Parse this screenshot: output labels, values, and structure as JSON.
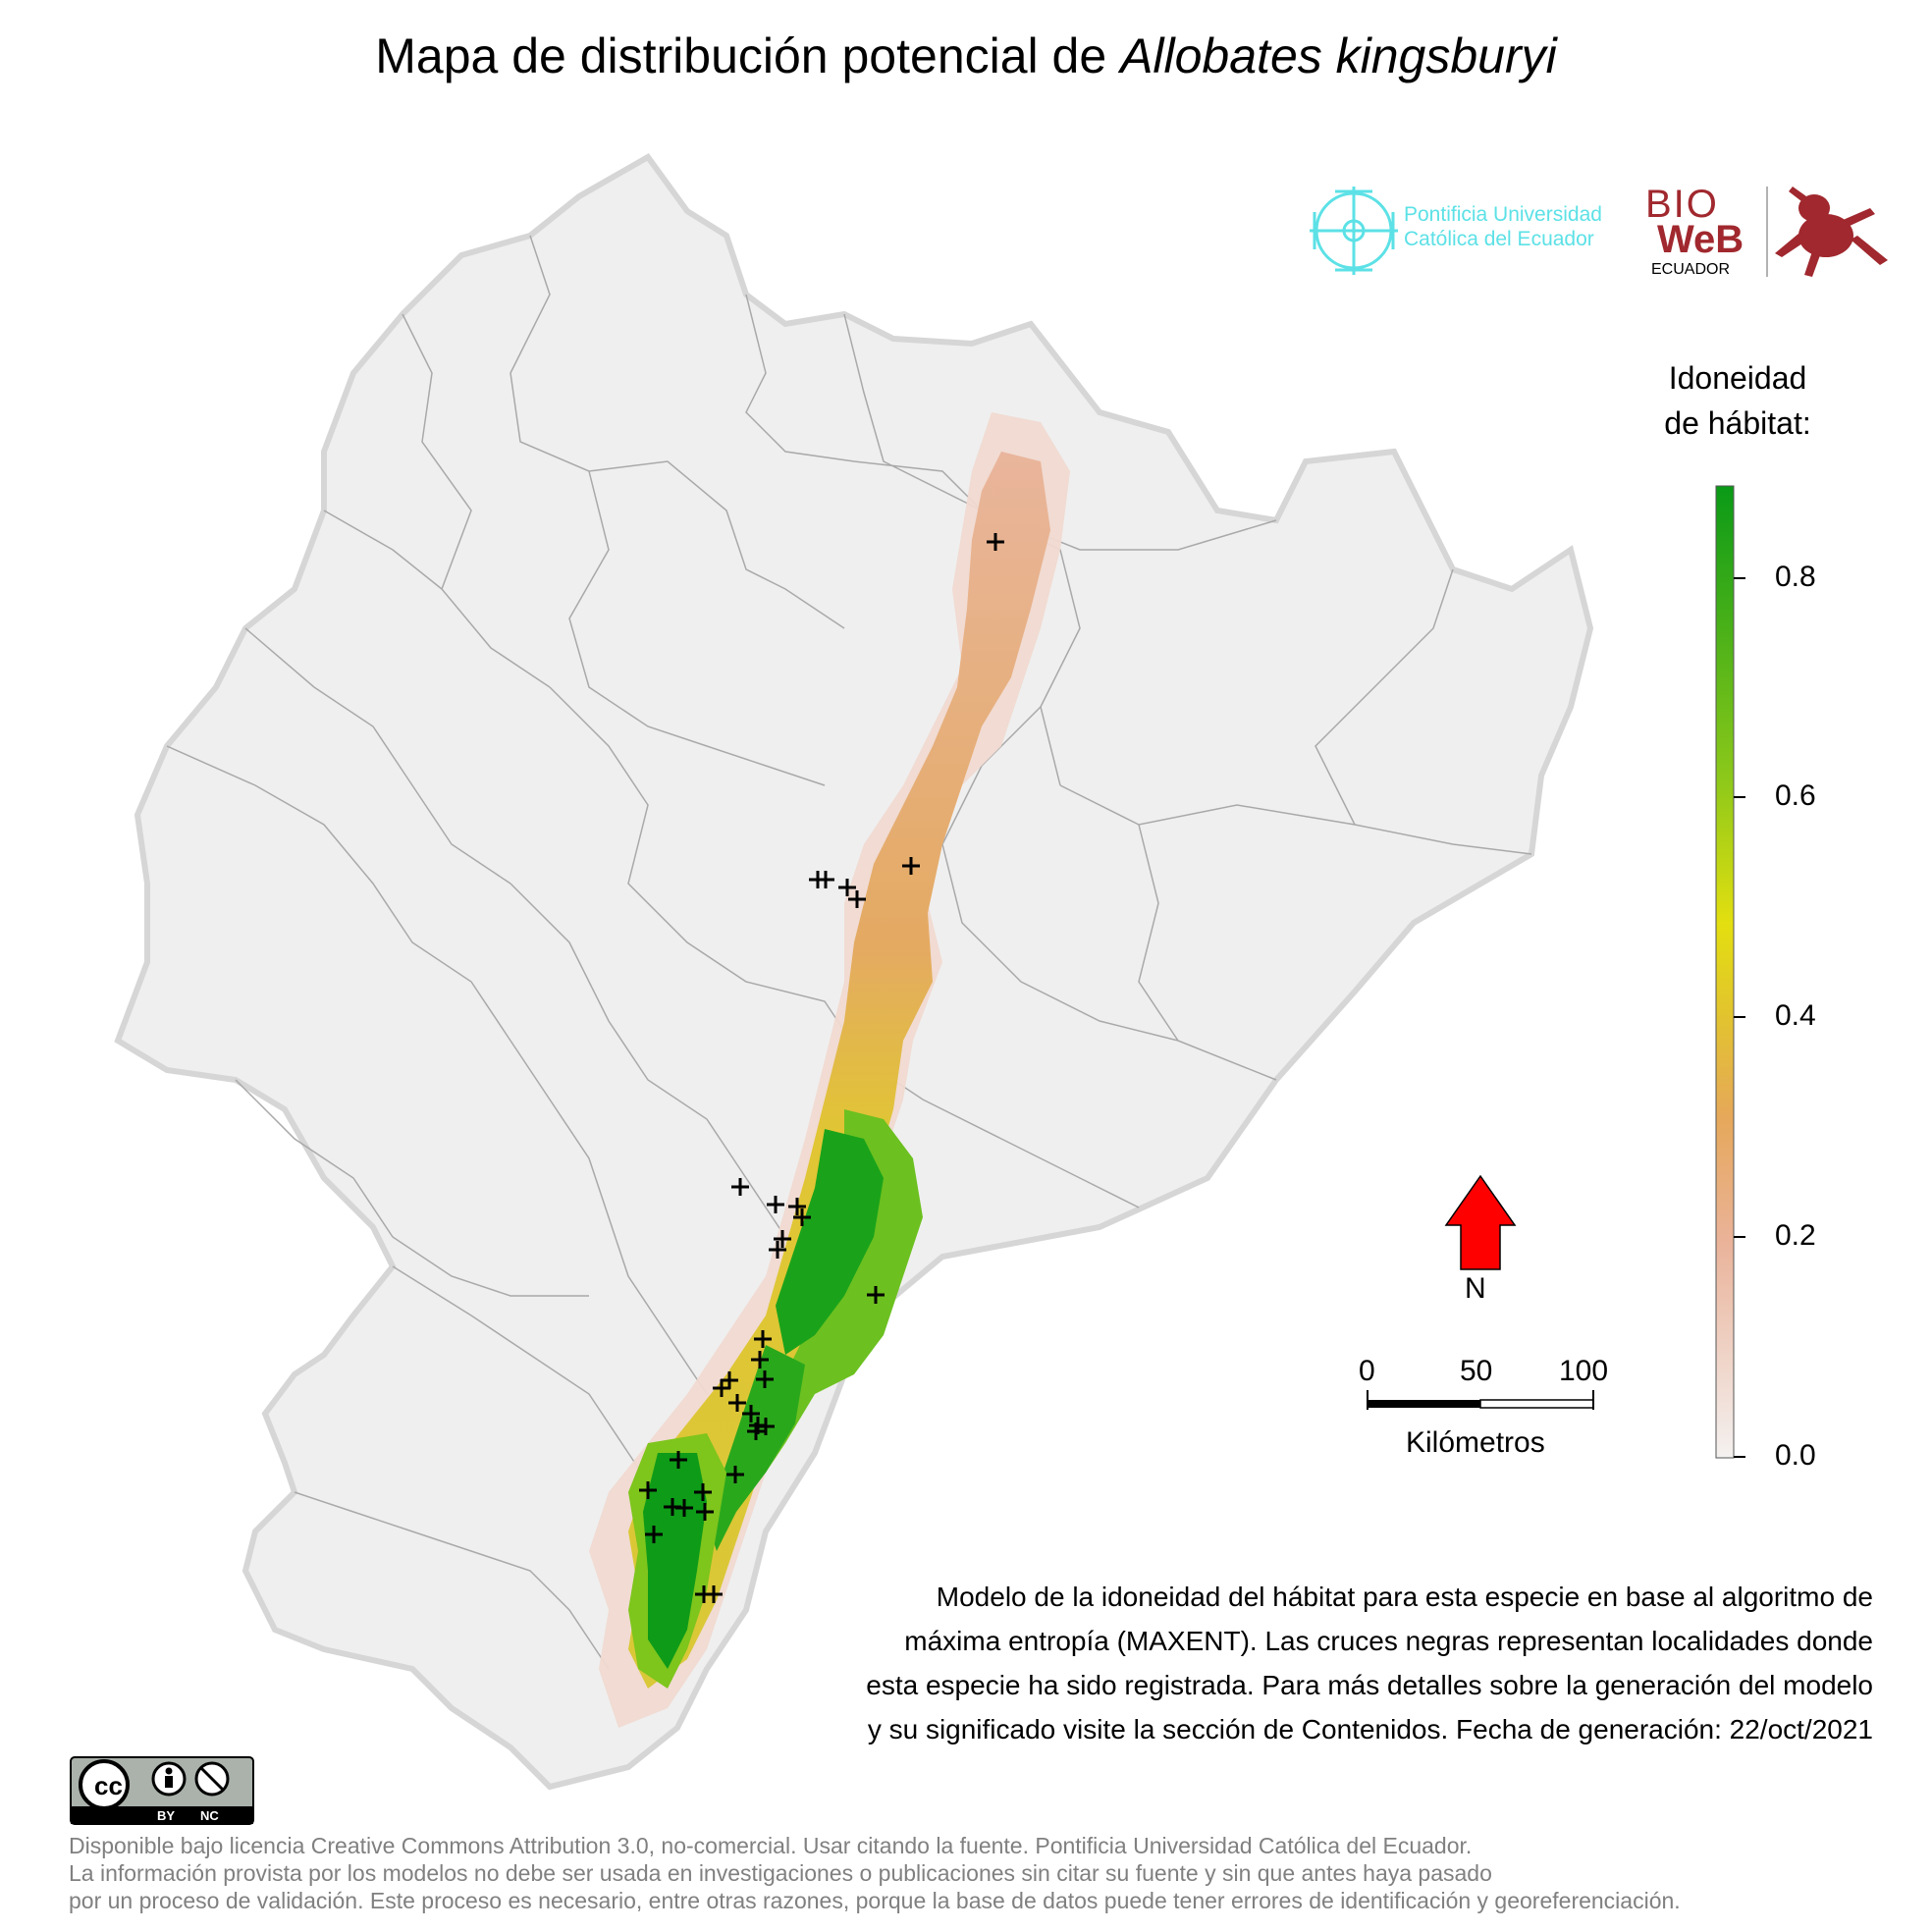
{
  "title": {
    "prefix": "Mapa de distribución potencial de",
    "species": "Allobates kingsburyi"
  },
  "logos": {
    "puce_line1": "Pontificia Universidad",
    "puce_line2": "Católica del Ecuador",
    "bioweb_line1": "BIO",
    "bioweb_line2": "WeB",
    "bioweb_line3": "ECUADOR"
  },
  "legend": {
    "title_line1": "Idoneidad",
    "title_line2": "de hábitat:",
    "ticks": [
      "0.8",
      "0.6",
      "0.4",
      "0.2",
      "0.0"
    ],
    "colors": {
      "low": "#f2efee",
      "mid_low": "#e8a37e",
      "mid": "#e0c92a",
      "mid_high": "#e8e010",
      "high": "#0a9a17"
    }
  },
  "north": {
    "label": "N",
    "arrow_color": "#ff0000"
  },
  "scale": {
    "labels": [
      "0",
      "50",
      "100"
    ],
    "unit": "Kilómetros"
  },
  "description": {
    "line1": "Modelo de la idoneidad del hábitat para esta especie en base al algoritmo de",
    "line2": "máxima entropía (MAXENT). Las cruces negras representan localidades donde",
    "line3": "esta especie ha sido registrada. Para más detalles sobre la generación del modelo",
    "line4": "y su significado visite la sección de Contenidos. Fecha de generación: 22/oct/2021"
  },
  "license_badge": {
    "by": "BY",
    "nc": "NC",
    "cc": "cc"
  },
  "license": {
    "line1": "Disponible bajo licencia Creative Commons Attribution 3.0, no-comercial. Usar citando la fuente. Pontificia Universidad Católica del Ecuador.",
    "line2": "La información provista por los modelos no debe ser usada en investigaciones o publicaciones sin citar su fuente y sin que antes haya pasado",
    "line3": "por un proceso de validación. Este proceso es necesario, entre otras razones, porque la base de datos puede tener errores de identificación y georeferenciación."
  }
}
